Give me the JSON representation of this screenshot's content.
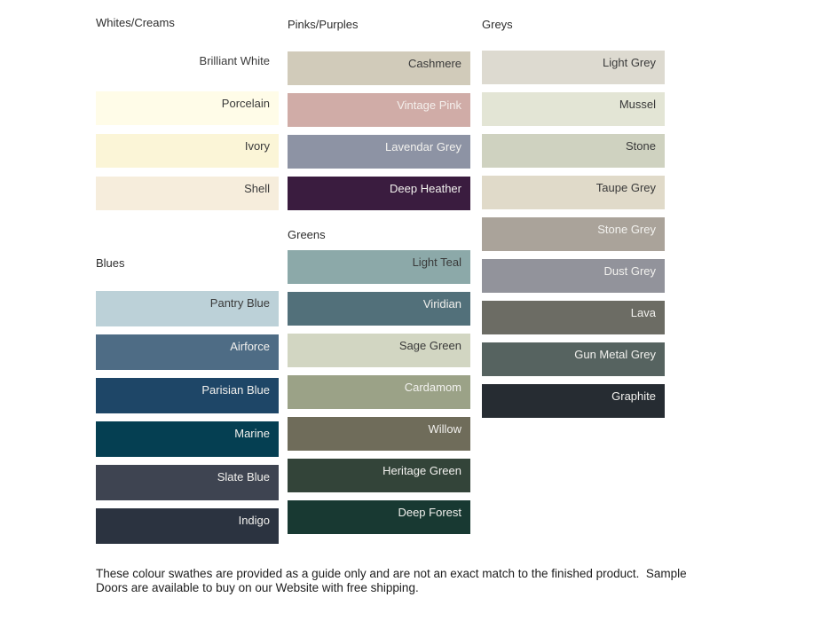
{
  "page": {
    "footer_note": "These colour swathes are provided as a guide only and are not an exact match to the finished product.  Sample Doors are available to buy on our Website with free shipping."
  },
  "text_colors": {
    "dark": "#3a3a3a",
    "light": "#f2f1ee"
  },
  "columns": [
    {
      "sections": [
        {
          "title": "Whites/Creams",
          "swatches": [
            {
              "name": "Brilliant White",
              "color": "#ffffff",
              "label_color": "#3a3a3a"
            },
            {
              "name": "Porcelain",
              "color": "#fffce8",
              "label_color": "#3a3a3a"
            },
            {
              "name": "Ivory",
              "color": "#fbf5d7",
              "label_color": "#3a3a3a"
            },
            {
              "name": "Shell",
              "color": "#f6eddc",
              "label_color": "#3a3a3a"
            }
          ]
        },
        {
          "title": "Blues",
          "swatches": [
            {
              "name": "Pantry Blue",
              "color": "#bcd1d8",
              "label_color": "#3a3a3a"
            },
            {
              "name": "Airforce",
              "color": "#4e6c85",
              "label_color": "#f2f1ee"
            },
            {
              "name": "Parisian Blue",
              "color": "#1e4667",
              "label_color": "#f2f1ee"
            },
            {
              "name": "Marine",
              "color": "#053f52",
              "label_color": "#f2f1ee"
            },
            {
              "name": "Slate Blue",
              "color": "#3e4451",
              "label_color": "#f2f1ee"
            },
            {
              "name": "Indigo",
              "color": "#2b3340",
              "label_color": "#f2f1ee"
            }
          ]
        }
      ]
    },
    {
      "sections": [
        {
          "title": "Pinks/Purples",
          "swatches": [
            {
              "name": "Cashmere",
              "color": "#d1cbba",
              "label_color": "#3a3a3a"
            },
            {
              "name": "Vintage Pink",
              "color": "#d0aca7",
              "label_color": "#f4efec"
            },
            {
              "name": "Lavendar Grey",
              "color": "#8d93a4",
              "label_color": "#f2f1ee"
            },
            {
              "name": "Deep Heather",
              "color": "#3a1c3f",
              "label_color": "#f2f1ee"
            }
          ]
        },
        {
          "title": "Greens",
          "swatches": [
            {
              "name": "Light Teal",
              "color": "#8ca9a9",
              "label_color": "#3a3a3a"
            },
            {
              "name": "Viridian",
              "color": "#52707a",
              "label_color": "#f2f1ee"
            },
            {
              "name": "Sage Green",
              "color": "#d2d6c2",
              "label_color": "#3a3a3a"
            },
            {
              "name": "Cardamom",
              "color": "#9ba287",
              "label_color": "#f2f1ee"
            },
            {
              "name": "Willow",
              "color": "#6f6c5a",
              "label_color": "#f2f1ee"
            },
            {
              "name": "Heritage Green",
              "color": "#334439",
              "label_color": "#f2f1ee"
            },
            {
              "name": "Deep Forest",
              "color": "#183932",
              "label_color": "#f2f1ee"
            }
          ]
        }
      ]
    },
    {
      "sections": [
        {
          "title": "Greys",
          "swatches": [
            {
              "name": "Light Grey",
              "color": "#dddad0",
              "label_color": "#3a3a3a"
            },
            {
              "name": "Mussel",
              "color": "#e3e5d5",
              "label_color": "#3a3a3a"
            },
            {
              "name": "Stone",
              "color": "#cfd2c0",
              "label_color": "#3a3a3a"
            },
            {
              "name": "Taupe Grey",
              "color": "#e0dac9",
              "label_color": "#3a3a3a"
            },
            {
              "name": "Stone Grey",
              "color": "#aaa39a",
              "label_color": "#f2f1ee"
            },
            {
              "name": "Dust Grey",
              "color": "#92939b",
              "label_color": "#f2f1ee"
            },
            {
              "name": "Lava",
              "color": "#6c6c64",
              "label_color": "#f2f1ee"
            },
            {
              "name": "Gun Metal Grey",
              "color": "#566360",
              "label_color": "#f2f1ee"
            },
            {
              "name": "Graphite",
              "color": "#262c32",
              "label_color": "#f2f1ee"
            }
          ]
        }
      ]
    }
  ]
}
